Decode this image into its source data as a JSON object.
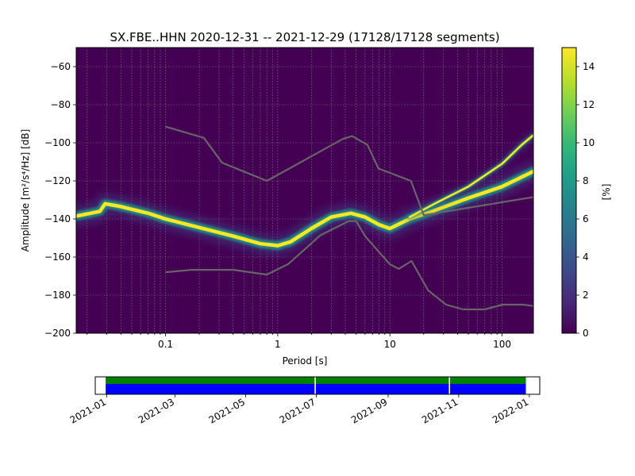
{
  "chart_data": [
    {
      "type": "heatmap",
      "title": "SX.FBE..HHN   2020-12-31 -- 2021-12-29  (17128/17128 segments)",
      "xlabel": "Period [s]",
      "ylabel": "Amplitude [m²/s⁴/Hz] [dB]",
      "x_scale": "log",
      "xlim": [
        0.016,
        190
      ],
      "ylim": [
        -200,
        -50
      ],
      "x_ticks": [
        0.1,
        1,
        10,
        100
      ],
      "x_tick_labels": [
        "0.1",
        "1",
        "10",
        "100"
      ],
      "y_ticks": [
        -200,
        -180,
        -160,
        -140,
        -120,
        -100,
        -80,
        -60
      ],
      "y_tick_labels": [
        "−200",
        "−180",
        "−160",
        "−140",
        "−120",
        "−100",
        "−80",
        "−60"
      ],
      "grid": true,
      "background_color": "#440154",
      "colorbar": {
        "label": "[%]",
        "range": [
          0,
          15
        ],
        "ticks": [
          0,
          2,
          4,
          6,
          8,
          10,
          12,
          14
        ],
        "tick_labels": [
          "0",
          "2",
          "4",
          "6",
          "8",
          "10",
          "12",
          "14"
        ],
        "colors": [
          "#440154",
          "#482878",
          "#3e4989",
          "#31688e",
          "#26828e",
          "#1f9e89",
          "#35b779",
          "#6ece58",
          "#b5de2b",
          "#fde725"
        ]
      },
      "noise_models": [
        {
          "name": "NHNM",
          "color": "#666666",
          "points": [
            [
              0.1,
              -91.5
            ],
            [
              0.22,
              -97.4
            ],
            [
              0.32,
              -110.5
            ],
            [
              0.8,
              -120
            ],
            [
              3.8,
              -98
            ],
            [
              4.6,
              -96.5
            ],
            [
              6.3,
              -101
            ],
            [
              7.9,
              -113.5
            ],
            [
              15.4,
              -120
            ],
            [
              20,
              -138
            ],
            [
              190,
              -128.5
            ]
          ]
        },
        {
          "name": "NLNM",
          "color": "#666666",
          "points": [
            [
              0.1,
              -168
            ],
            [
              0.17,
              -166.7
            ],
            [
              0.4,
              -166.7
            ],
            [
              0.8,
              -169.2
            ],
            [
              1.24,
              -163.7
            ],
            [
              2.4,
              -148.6
            ],
            [
              4.3,
              -141.1
            ],
            [
              5,
              -141.1
            ],
            [
              6,
              -149
            ],
            [
              10,
              -163.8
            ],
            [
              12,
              -166.2
            ],
            [
              15.6,
              -162.1
            ],
            [
              21.9,
              -177.5
            ],
            [
              31.6,
              -185
            ],
            [
              45,
              -187.5
            ],
            [
              70,
              -187.5
            ],
            [
              101,
              -185
            ],
            [
              154,
              -185
            ],
            [
              190,
              -185.7
            ]
          ]
        }
      ],
      "density_traces": [
        {
          "name": "main",
          "points": [
            [
              0.016,
              -138.5
            ],
            [
              0.026,
              -136
            ],
            [
              0.029,
              -132
            ],
            [
              0.04,
              -133.5
            ],
            [
              0.07,
              -137
            ],
            [
              0.1,
              -140
            ],
            [
              0.2,
              -144.5
            ],
            [
              0.4,
              -149
            ],
            [
              0.7,
              -153
            ],
            [
              1.0,
              -154
            ],
            [
              1.3,
              -152
            ],
            [
              2.0,
              -145
            ],
            [
              3.0,
              -139
            ],
            [
              4.5,
              -137
            ],
            [
              6.0,
              -139
            ],
            [
              8.0,
              -143
            ],
            [
              10,
              -145
            ],
            [
              15,
              -140
            ],
            [
              25,
              -135.5
            ],
            [
              50,
              -129
            ],
            [
              100,
              -123
            ],
            [
              190,
              -115
            ]
          ]
        },
        {
          "name": "upper",
          "points": [
            [
              15,
              -139
            ],
            [
              25,
              -132
            ],
            [
              50,
              -123
            ],
            [
              100,
              -111
            ],
            [
              150,
              -101
            ],
            [
              190,
              -96
            ]
          ]
        }
      ]
    },
    {
      "type": "timeline",
      "x_ticks": [
        "2021-01",
        "2021-03",
        "2021-05",
        "2021-07",
        "2021-09",
        "2021-11",
        "2022-01"
      ],
      "range": [
        "2020-12-22",
        "2022-01-10"
      ],
      "data_range": [
        "2020-12-31",
        "2021-12-29"
      ],
      "gaps": [
        "2021-06-30",
        "2021-10-24"
      ],
      "colors": {
        "coverage": "#008000",
        "psd": "#0000ff"
      }
    }
  ]
}
